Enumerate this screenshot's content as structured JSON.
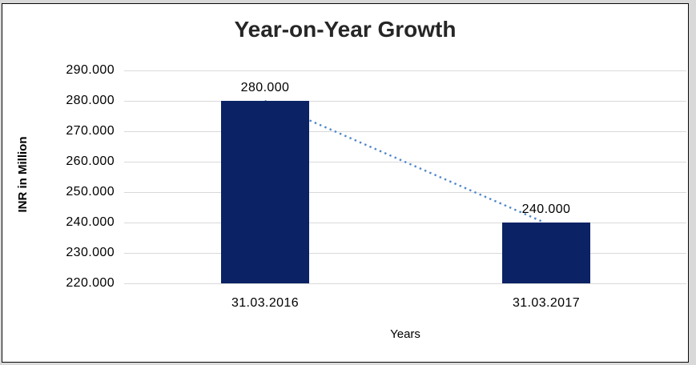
{
  "chart_data": {
    "type": "bar",
    "title": "Year-on-Year Growth",
    "xlabel": "Years",
    "ylabel": "INR in Million",
    "categories": [
      "31.03.2016",
      "31.03.2017"
    ],
    "values": [
      280000,
      240000
    ],
    "value_labels": [
      "280.000",
      "240.000"
    ],
    "ylim": [
      220000,
      290000
    ],
    "ytick_step": 10000,
    "ytick_labels": [
      "220.000",
      "230.000",
      "240.000",
      "250.000",
      "260.000",
      "270.000",
      "280.000",
      "290.000"
    ],
    "grid": true,
    "legend": "none",
    "trendline": {
      "type": "linear",
      "style": "dotted",
      "points": [
        280000,
        240000
      ]
    },
    "colors": {
      "bar": "#0B2265",
      "trendline": "#4F86C8",
      "gridline": "#D9D9D9",
      "title_text": "#262626",
      "axis_text": "#000000",
      "plot_background": "#FFFFFF",
      "frame_border": "#0A0A0A",
      "outer_background": "#D9D9D9"
    }
  }
}
